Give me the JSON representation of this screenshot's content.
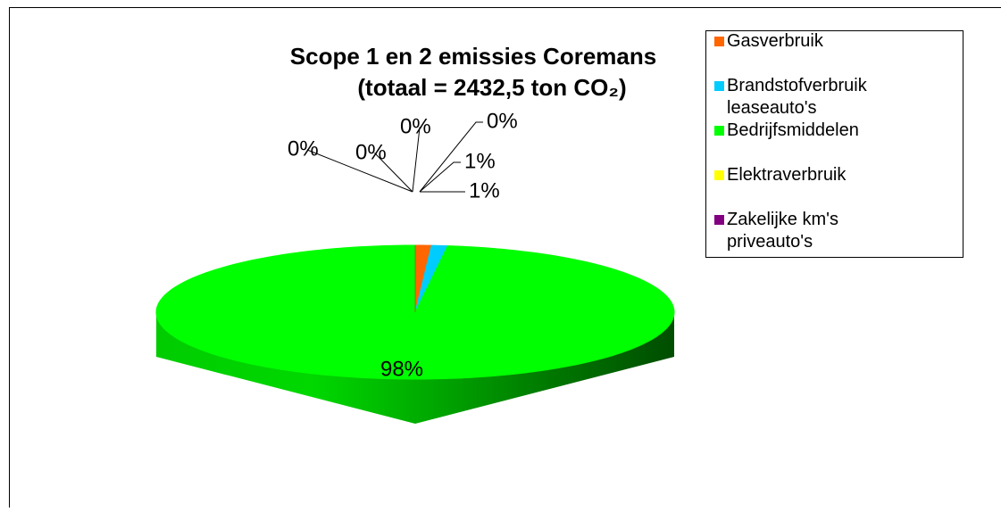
{
  "chart_data": {
    "type": "pie3d",
    "title": [
      "Scope 1 en 2 emissies Coremans",
      "(totaal = 2432,5 ton CO₂)"
    ],
    "categories": [
      "Gasverbruik",
      "Brandstofverbruik leaseauto's",
      "Bedrijfsmiddelen",
      "Elektraverbruik",
      "Zakelijke km's priveauto's",
      null,
      null
    ],
    "values": [
      1,
      1,
      98,
      0,
      0,
      0,
      0
    ],
    "value_labels": [
      "1%",
      "1%",
      "98%",
      "0%",
      "0%",
      "0%",
      "0%"
    ],
    "colors": [
      "#ff6600",
      "#00ccff",
      "#00ff00",
      "#ffff00",
      "#800080",
      "#996633",
      "#808000"
    ],
    "legend": "top-right"
  }
}
